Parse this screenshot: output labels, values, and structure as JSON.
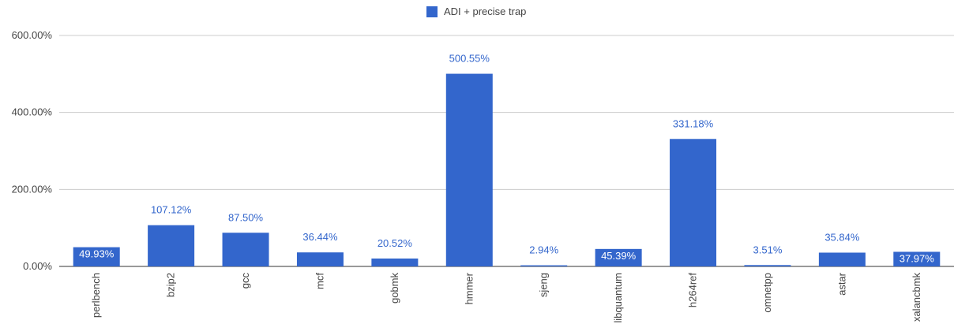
{
  "chart_data": {
    "type": "bar",
    "categories": [
      "perlbench",
      "bzip2",
      "gcc",
      "mcf",
      "gobmk",
      "hmmer",
      "sjeng",
      "libquantum",
      "h264ref",
      "omnetpp",
      "astar",
      "xalancbmk"
    ],
    "series": [
      {
        "name": "ADI + precise trap",
        "values": [
          49.93,
          107.12,
          87.5,
          36.44,
          20.52,
          500.55,
          2.94,
          45.39,
          331.18,
          3.51,
          35.84,
          37.97
        ],
        "labels": [
          "49.93%",
          "107.12%",
          "87.50%",
          "36.44%",
          "20.52%",
          "500.55%",
          "2.94%",
          "45.39%",
          "331.18%",
          "3.51%",
          "35.84%",
          "37.97%"
        ],
        "color": "#3366cc"
      }
    ],
    "ylim": [
      0,
      600
    ],
    "yticks": [
      {
        "value": 0,
        "label": "0.00%"
      },
      {
        "value": 200,
        "label": "200.00%"
      },
      {
        "value": 400,
        "label": "400.00%"
      },
      {
        "value": 600,
        "label": "600.00%"
      }
    ],
    "grid": true,
    "legend": "top-center",
    "title": "",
    "xlabel": "",
    "ylabel": ""
  },
  "colors": {
    "bar": "#3366cc",
    "label_outside": "#3366cc",
    "label_inside": "#ffffff",
    "grid": "#cccccc",
    "axis_text": "#444444"
  }
}
